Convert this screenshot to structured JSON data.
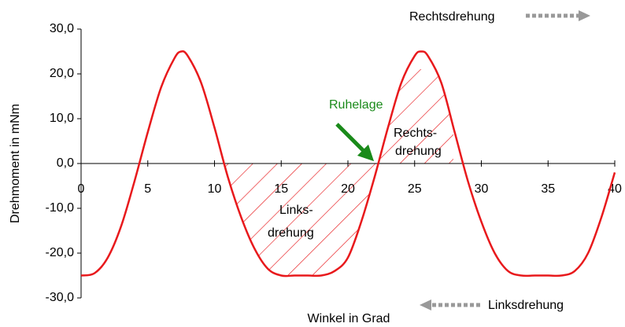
{
  "chart_data": {
    "type": "line",
    "x_label": "Winkel in Grad",
    "y_label": "Drehmoment in mNm",
    "x": [
      0,
      1,
      2,
      3,
      4,
      5,
      6,
      7,
      7.5,
      8,
      9,
      10,
      11,
      12,
      13,
      14,
      15,
      16,
      17,
      18,
      19,
      20,
      21,
      22,
      23,
      24,
      25,
      25.5,
      26,
      27,
      28,
      29,
      30,
      31,
      32,
      33,
      34,
      35,
      36,
      37,
      38,
      39,
      40
    ],
    "series": [
      {
        "color": "#e8191c",
        "values": [
          -25,
          -24.5,
          -21,
          -14,
          -4,
          7,
          17,
          23.5,
          25,
          24,
          18,
          8,
          -3,
          -12,
          -19,
          -23.5,
          -25,
          -25,
          -25,
          -25,
          -24,
          -21,
          -13,
          -3,
          8,
          18,
          24,
          25,
          24,
          18,
          7,
          -4,
          -13,
          -20,
          -24,
          -25,
          -25,
          -25,
          -25,
          -24,
          -20,
          -12,
          -2
        ]
      }
    ],
    "xlim": [
      0,
      40
    ],
    "xticks": [
      0,
      5,
      10,
      15,
      20,
      25,
      30,
      35,
      40
    ],
    "ylim": [
      -30,
      30
    ],
    "yticks": [
      {
        "value": -30,
        "label": "-30,0"
      },
      {
        "value": -20,
        "label": "-20,0"
      },
      {
        "value": -10,
        "label": "-10,0"
      },
      {
        "value": 0,
        "label": "0,0"
      },
      {
        "value": 10,
        "label": "10,0"
      },
      {
        "value": 20,
        "label": "20,0"
      },
      {
        "value": 30,
        "label": "30,0"
      }
    ],
    "annotations": [
      "Rechtsdrehung",
      "Linksdrehung",
      "Ruhelage",
      "Rechts-",
      "drehung",
      "Links-",
      "drehung"
    ]
  }
}
